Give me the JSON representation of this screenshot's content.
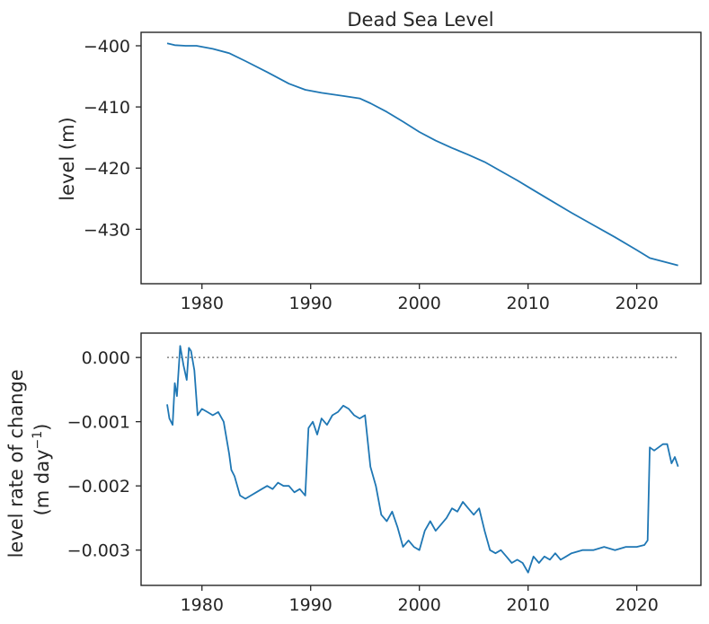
{
  "chart_data": [
    {
      "type": "line",
      "title": "Dead Sea Level",
      "xlabel": "",
      "ylabel": "level (m)",
      "xlim": [
        1974.4,
        2025.9
      ],
      "ylim": [
        -438.9,
        -397.8
      ],
      "xticks": [
        1980,
        1990,
        2000,
        2010,
        2020
      ],
      "xtick_labels": [
        "1980",
        "1990",
        "2000",
        "2010",
        "2020"
      ],
      "yticks": [
        -400,
        -410,
        -420,
        -430
      ],
      "ytick_labels": [
        "−400",
        "−410",
        "−420",
        "−430"
      ],
      "grid": false,
      "series": [
        {
          "color": "#1f77b4",
          "x": [
            1976.8,
            1977.5,
            1978.5,
            1979.5,
            1981.0,
            1982.5,
            1984.0,
            1986.0,
            1988.0,
            1989.5,
            1991.0,
            1993.0,
            1994.5,
            1995.5,
            1997.0,
            1998.5,
            2000.0,
            2001.5,
            2003.0,
            2004.5,
            2006.0,
            2007.5,
            2009.0,
            2010.5,
            2012.0,
            2014.0,
            2016.0,
            2018.0,
            2020.0,
            2021.2,
            2022.5,
            2023.8
          ],
          "y": [
            -399.6,
            -399.9,
            -400.0,
            -400.0,
            -400.5,
            -401.2,
            -402.5,
            -404.3,
            -406.2,
            -407.2,
            -407.7,
            -408.2,
            -408.6,
            -409.4,
            -410.8,
            -412.4,
            -414.1,
            -415.5,
            -416.7,
            -417.8,
            -419.0,
            -420.5,
            -422.0,
            -423.6,
            -425.2,
            -427.3,
            -429.3,
            -431.3,
            -433.4,
            -434.7,
            -435.3,
            -435.9
          ]
        }
      ]
    },
    {
      "type": "line",
      "title": "",
      "xlabel": "",
      "ylabel": "level rate of change\n(m day⁻¹)",
      "ylabel_lines": [
        "level rate of change",
        "(m day",
        "−1",
        ")"
      ],
      "xlim": [
        1974.4,
        2025.9
      ],
      "ylim": [
        -0.00355,
        0.00038
      ],
      "xticks": [
        1980,
        1990,
        2000,
        2010,
        2020
      ],
      "xtick_labels": [
        "1980",
        "1990",
        "2000",
        "2010",
        "2020"
      ],
      "yticks": [
        0.0,
        -0.001,
        -0.002,
        -0.003
      ],
      "ytick_labels": [
        "0.000",
        "−0.001",
        "−0.002",
        "−0.003"
      ],
      "grid": false,
      "reference_line": {
        "y": 0.0,
        "style": "dotted",
        "color": "#808080",
        "x_range": [
          1976.8,
          2023.8
        ]
      },
      "series": [
        {
          "color": "#1f77b4",
          "x": [
            1976.8,
            1977.0,
            1977.3,
            1977.5,
            1977.7,
            1978.0,
            1978.3,
            1978.6,
            1978.8,
            1979.0,
            1979.3,
            1979.6,
            1980.0,
            1980.5,
            1981.0,
            1981.5,
            1982.0,
            1982.5,
            1982.7,
            1983.0,
            1983.5,
            1984.0,
            1984.5,
            1985.0,
            1985.5,
            1986.0,
            1986.5,
            1987.0,
            1987.5,
            1988.0,
            1988.5,
            1989.0,
            1989.5,
            1989.8,
            1990.2,
            1990.6,
            1991.0,
            1991.5,
            1992.0,
            1992.5,
            1993.0,
            1993.5,
            1994.0,
            1994.5,
            1995.0,
            1995.5,
            1996.0,
            1996.5,
            1997.0,
            1997.5,
            1998.0,
            1998.5,
            1999.0,
            1999.5,
            2000.0,
            2000.5,
            2001.0,
            2001.5,
            2002.0,
            2002.5,
            2003.0,
            2003.5,
            2004.0,
            2004.5,
            2005.0,
            2005.5,
            2006.0,
            2006.5,
            2007.0,
            2007.5,
            2008.0,
            2008.5,
            2009.0,
            2009.5,
            2010.0,
            2010.5,
            2011.0,
            2011.5,
            2012.0,
            2012.5,
            2013.0,
            2013.5,
            2014.0,
            2015.0,
            2016.0,
            2017.0,
            2018.0,
            2019.0,
            2020.0,
            2020.7,
            2021.0,
            2021.2,
            2021.6,
            2022.0,
            2022.4,
            2022.8,
            2023.2,
            2023.5,
            2023.8
          ],
          "y": [
            -0.00073,
            -0.00095,
            -0.00105,
            -0.0004,
            -0.0006,
            0.00018,
            -0.00012,
            -0.00035,
            0.00015,
            0.0001,
            -0.0002,
            -0.0009,
            -0.0008,
            -0.00085,
            -0.0009,
            -0.00085,
            -0.001,
            -0.0015,
            -0.00175,
            -0.00185,
            -0.00215,
            -0.0022,
            -0.00215,
            -0.0021,
            -0.00205,
            -0.002,
            -0.00205,
            -0.00195,
            -0.002,
            -0.002,
            -0.0021,
            -0.00205,
            -0.00215,
            -0.0011,
            -0.001,
            -0.0012,
            -0.00095,
            -0.00105,
            -0.0009,
            -0.00085,
            -0.00075,
            -0.0008,
            -0.0009,
            -0.00095,
            -0.0009,
            -0.0017,
            -0.002,
            -0.00245,
            -0.00255,
            -0.0024,
            -0.00265,
            -0.00295,
            -0.00285,
            -0.00295,
            -0.003,
            -0.0027,
            -0.00255,
            -0.0027,
            -0.0026,
            -0.0025,
            -0.00235,
            -0.0024,
            -0.00225,
            -0.00235,
            -0.00245,
            -0.00235,
            -0.0027,
            -0.003,
            -0.00305,
            -0.003,
            -0.0031,
            -0.0032,
            -0.00315,
            -0.0032,
            -0.00335,
            -0.0031,
            -0.0032,
            -0.0031,
            -0.00315,
            -0.00305,
            -0.00315,
            -0.0031,
            -0.00305,
            -0.003,
            -0.003,
            -0.00295,
            -0.003,
            -0.00295,
            -0.00295,
            -0.00292,
            -0.00285,
            -0.0014,
            -0.00145,
            -0.0014,
            -0.00135,
            -0.00135,
            -0.00165,
            -0.00155,
            -0.0017
          ]
        }
      ]
    }
  ]
}
